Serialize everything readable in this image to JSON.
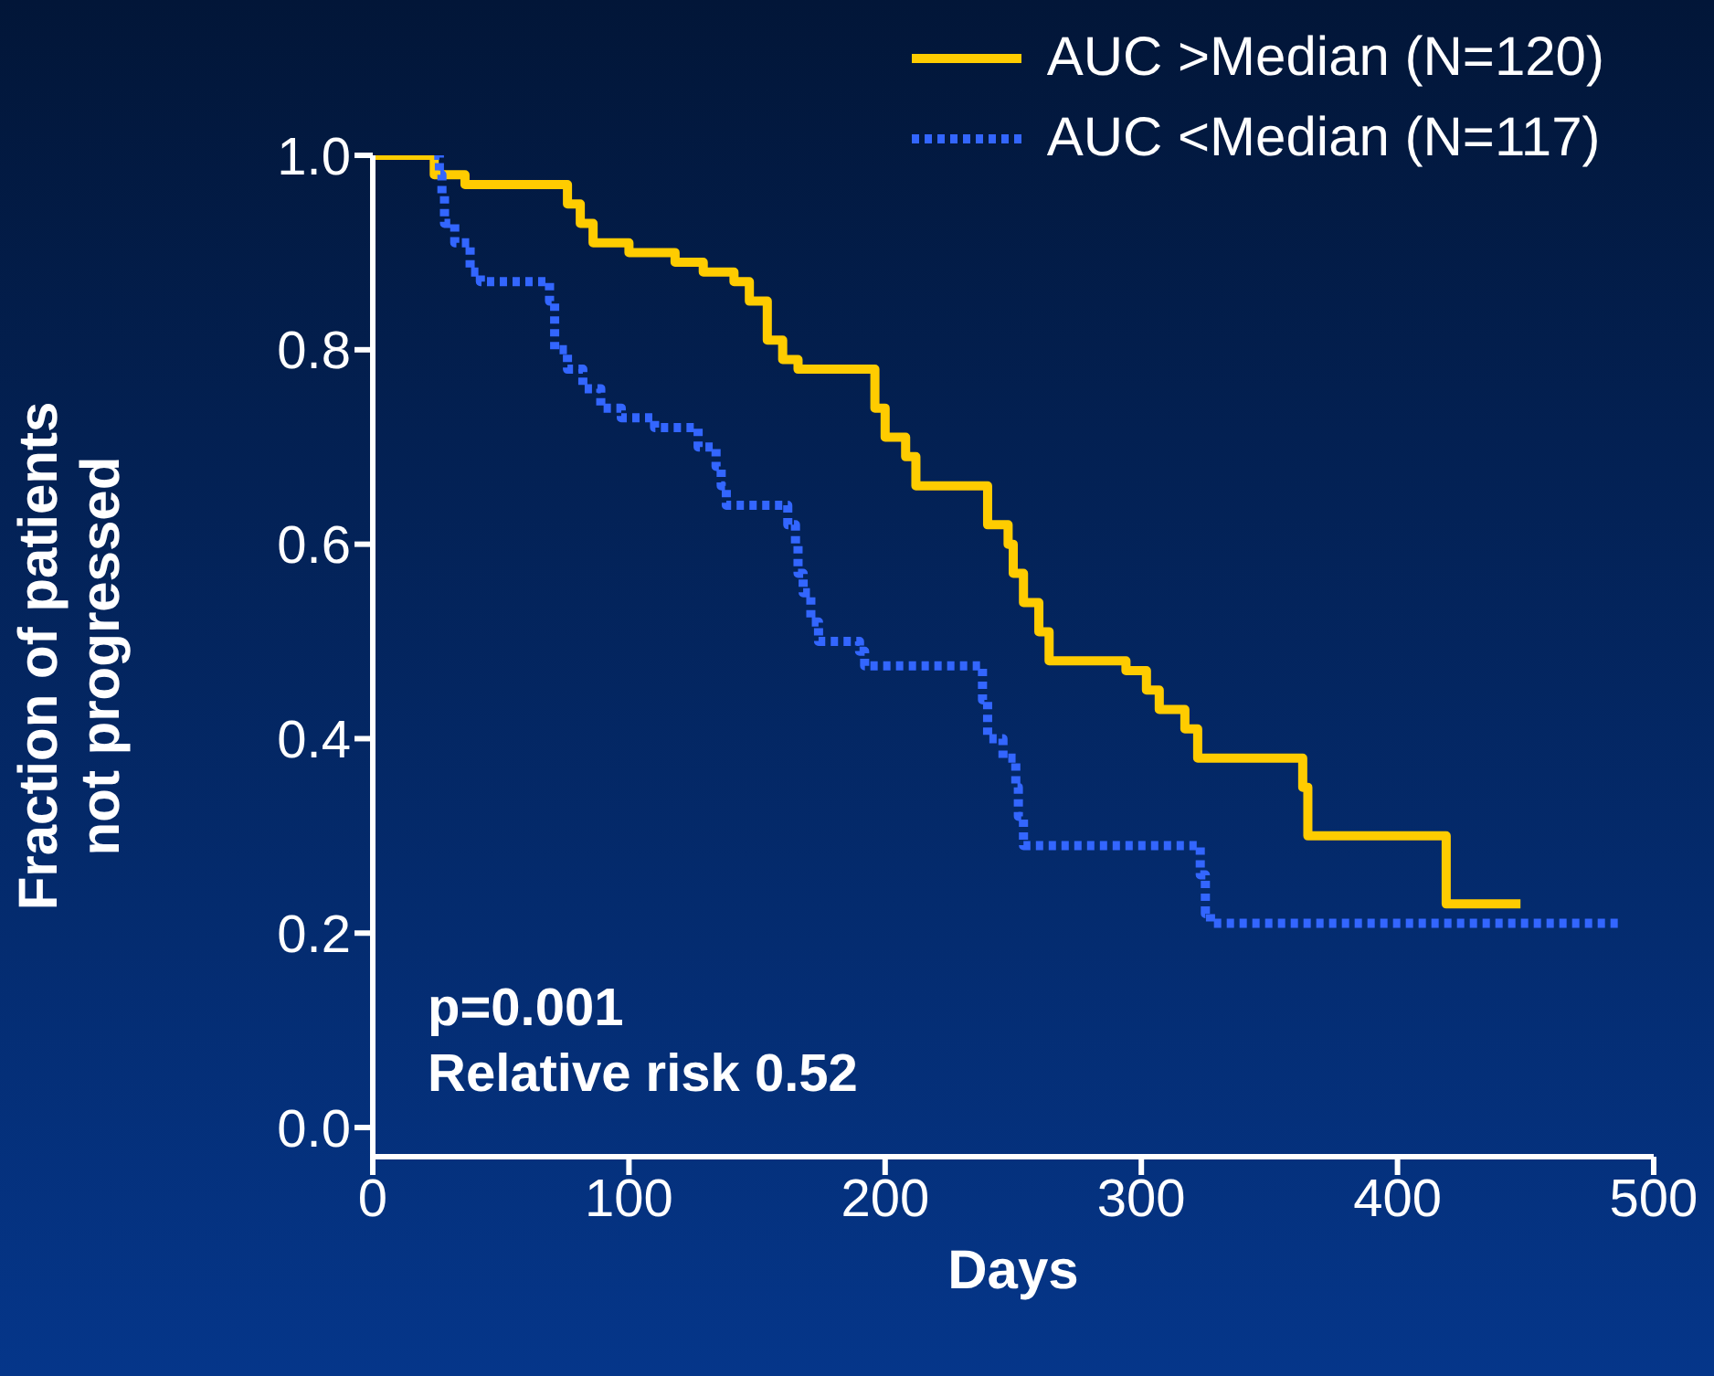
{
  "chart_data": {
    "type": "step",
    "xlabel": "Days",
    "ylabel": "Fraction of patients\nnot progressed",
    "xlim": [
      0,
      500
    ],
    "xticks": [
      0,
      100,
      200,
      300,
      400,
      500
    ],
    "ylim": [
      -0.03,
      1.0
    ],
    "yticks": [
      {
        "value": 0,
        "label": "0.0"
      },
      0.2,
      0.4,
      0.6,
      0.8,
      {
        "value": 1,
        "label": "1.0"
      }
    ],
    "legend": "top right",
    "annotations": [
      "p=0.001",
      "Relative risk 0.52"
    ],
    "series": [
      {
        "name": "AUC >Median (N=120)",
        "color": "#ffcc00",
        "line_style": "solid",
        "x": [
          0,
          24,
          36,
          70,
          76,
          81,
          86,
          100,
          118,
          129,
          141,
          147,
          154,
          160,
          166,
          194,
          196,
          200,
          208,
          212,
          237,
          240,
          248,
          250,
          254,
          260,
          264,
          292,
          294,
          302,
          307,
          317,
          322,
          361,
          363,
          365,
          418,
          419,
          448
        ],
        "values": [
          1.0,
          0.98,
          0.97,
          0.97,
          0.95,
          0.93,
          0.91,
          0.9,
          0.89,
          0.88,
          0.87,
          0.85,
          0.81,
          0.79,
          0.78,
          0.78,
          0.74,
          0.71,
          0.69,
          0.66,
          0.66,
          0.62,
          0.6,
          0.57,
          0.54,
          0.51,
          0.48,
          0.48,
          0.47,
          0.45,
          0.43,
          0.41,
          0.38,
          0.38,
          0.35,
          0.3,
          0.3,
          0.23,
          0.23
        ]
      },
      {
        "name": "AUC <Median (N=117)",
        "color": "#3366ff",
        "line_style": "dotted",
        "x": [
          24,
          26,
          27,
          28,
          32,
          38,
          42,
          68,
          69,
          71,
          76,
          82,
          89,
          97,
          110,
          124,
          127,
          134,
          136,
          138,
          160,
          162,
          165,
          166,
          168,
          171,
          174,
          190,
          192,
          237,
          238,
          240,
          246,
          251,
          252,
          254,
          321,
          323,
          325,
          327,
          486
        ],
        "values": [
          1.0,
          0.98,
          0.96,
          0.93,
          0.91,
          0.88,
          0.87,
          0.87,
          0.85,
          0.8,
          0.78,
          0.76,
          0.74,
          0.73,
          0.72,
          0.72,
          0.7,
          0.68,
          0.66,
          0.64,
          0.64,
          0.62,
          0.6,
          0.57,
          0.55,
          0.52,
          0.5,
          0.49,
          0.475,
          0.475,
          0.44,
          0.4,
          0.38,
          0.35,
          0.32,
          0.29,
          0.29,
          0.26,
          0.22,
          0.21,
          0.21
        ]
      }
    ]
  }
}
